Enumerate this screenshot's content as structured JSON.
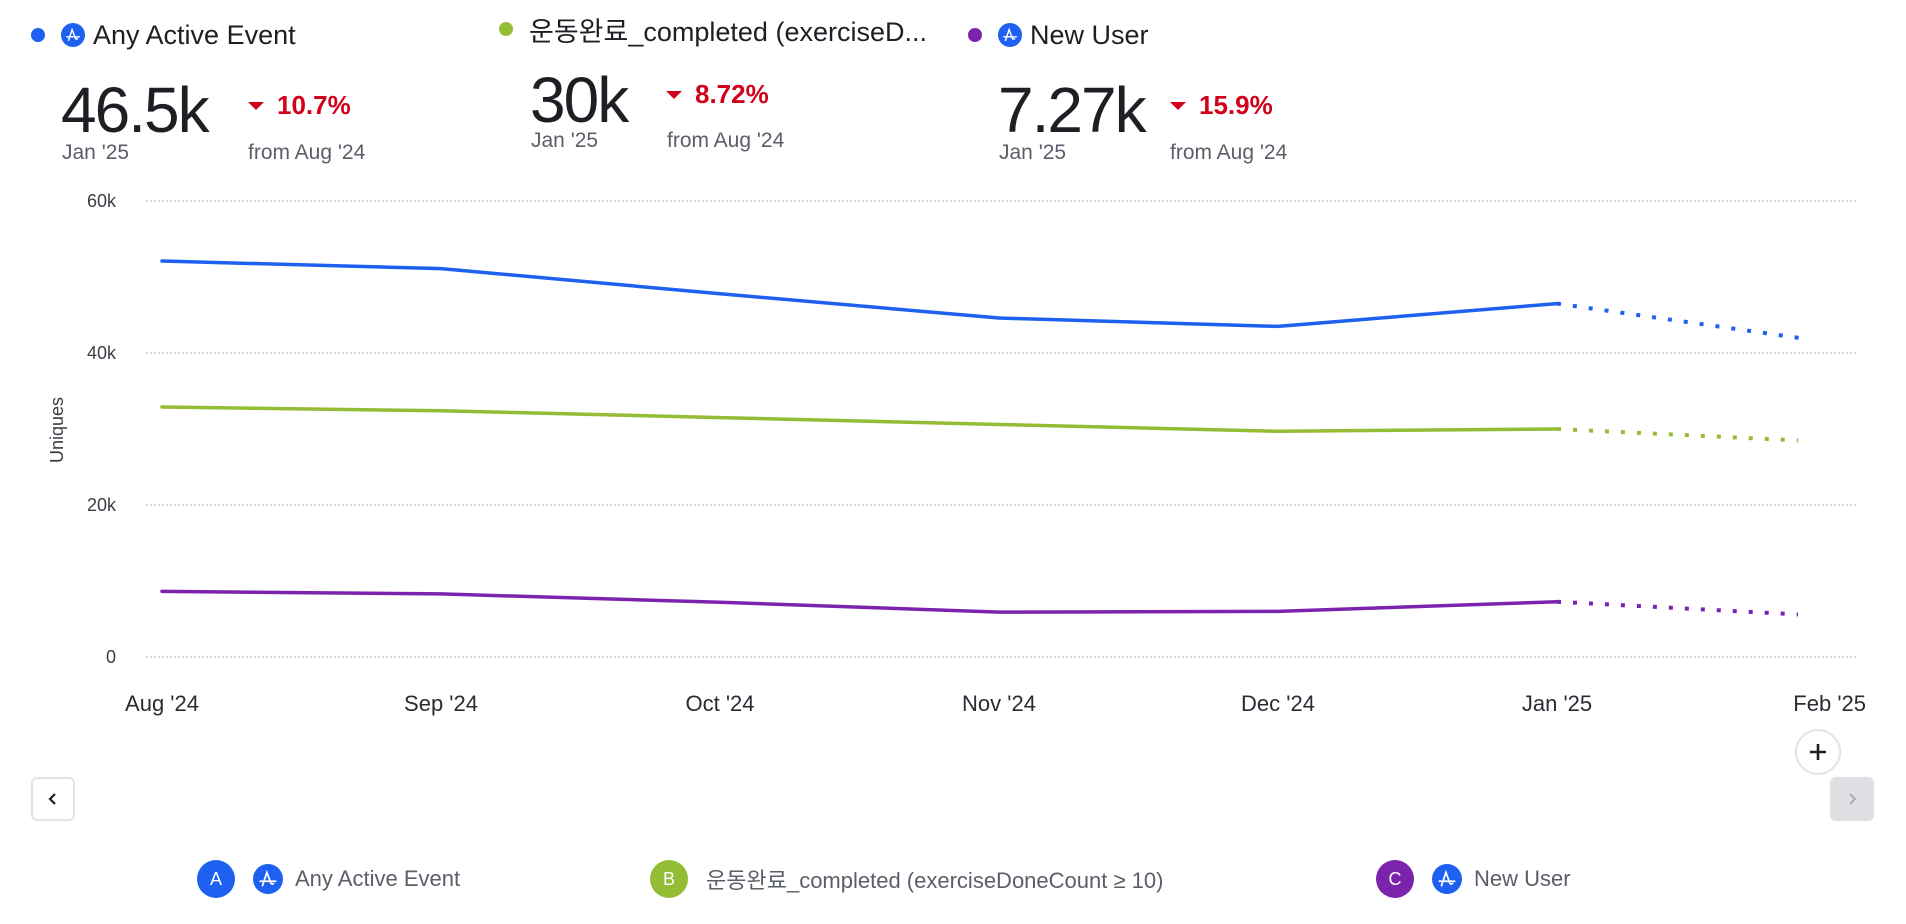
{
  "metrics": [
    {
      "title": "Any Active Event",
      "color": "#1e61f0",
      "has_event_icon": true,
      "value": "46.5k",
      "period": "Jan '25",
      "delta": "10.7%",
      "delta_direction": "down",
      "delta_from": "from Aug '24"
    },
    {
      "title": "운동완료_completed (exerciseD...",
      "color": "#93bd35",
      "has_event_icon": false,
      "value": "30k",
      "period": "Jan '25",
      "delta": "8.72%",
      "delta_direction": "down",
      "delta_from": "from Aug '24"
    },
    {
      "title": "New User",
      "color": "#7b23ad",
      "has_event_icon": true,
      "value": "7.27k",
      "period": "Jan '25",
      "delta": "15.9%",
      "delta_direction": "down",
      "delta_from": "from Aug '24"
    }
  ],
  "chart_data": {
    "type": "line",
    "title": "",
    "xlabel": "",
    "ylabel": "Uniques",
    "categories": [
      "Aug '24",
      "Sep '24",
      "Oct '24",
      "Nov '24",
      "Dec '24",
      "Jan '25",
      "Feb '25"
    ],
    "ylim": [
      0,
      60000
    ],
    "yticks": [
      0,
      20000,
      40000,
      60000
    ],
    "ytick_labels": [
      "0",
      "20k",
      "40k",
      "60k"
    ],
    "grid": true,
    "forecast_from_index": 5,
    "series": [
      {
        "name": "Any Active Event",
        "color": "#1e61f0",
        "values": [
          52100,
          51100,
          47800,
          44600,
          43500,
          46500,
          41800
        ]
      },
      {
        "name": "운동완료_completed (exerciseDoneCount ≥ 10)",
        "color": "#93bd35",
        "values": [
          32900,
          32400,
          31500,
          30600,
          29700,
          30000,
          28500
        ]
      },
      {
        "name": "New User",
        "color": "#7b23ad",
        "values": [
          8640,
          8300,
          7200,
          5900,
          6000,
          7270,
          5600
        ]
      }
    ]
  },
  "controls": {
    "prev_icon": "chevron-left-icon",
    "next_icon": "chevron-right-icon",
    "add_icon": "plus-icon"
  },
  "legend": [
    {
      "badge": "A",
      "color": "#1e61f0",
      "has_event_icon": true,
      "label": "Any Active Event"
    },
    {
      "badge": "B",
      "color": "#93bd35",
      "has_event_icon": false,
      "label": "운동완료_completed (exerciseDoneCount ≥ 10)"
    },
    {
      "badge": "C",
      "color": "#7b23ad",
      "has_event_icon": true,
      "label": "New User"
    }
  ]
}
